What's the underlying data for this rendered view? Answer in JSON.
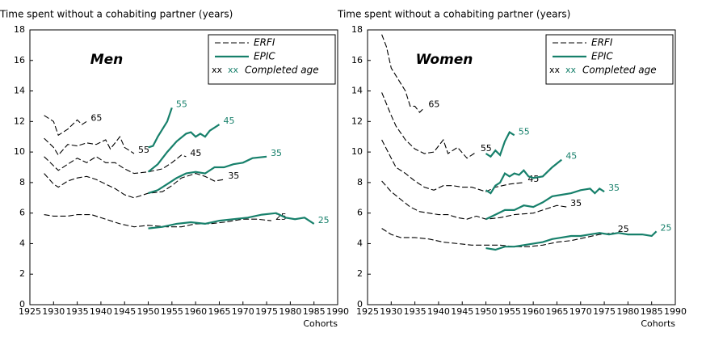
{
  "chart_data": [
    {
      "type": "line",
      "y_label": "Time spent without a cohabiting partner (years)",
      "x_label": "Cohorts",
      "panel": "Men",
      "xlim": [
        1925,
        1990
      ],
      "ylim": [
        0,
        18
      ],
      "xticks": [
        1925,
        1930,
        1935,
        1940,
        1945,
        1950,
        1955,
        1960,
        1965,
        1970,
        1975,
        1980,
        1985,
        1990
      ],
      "yticks": [
        0,
        2,
        4,
        6,
        8,
        10,
        12,
        14,
        16,
        18
      ],
      "legend": [
        {
          "label": "ERFI",
          "color": "#000000",
          "dashed": true
        },
        {
          "label": "EPIC",
          "color": "#17806b",
          "dashed": false
        }
      ],
      "age_note": {
        "markers": [
          "xx",
          "xx"
        ],
        "label": "Completed age"
      },
      "series": [
        {
          "name": "65",
          "color": "#000000",
          "dashed": true,
          "x": [
            1928,
            1930,
            1931,
            1933,
            1935,
            1936,
            1937
          ],
          "values": [
            12.4,
            12.0,
            11.1,
            11.5,
            12.1,
            11.8,
            12.0
          ]
        },
        {
          "name": "55",
          "color": "#000000",
          "dashed": true,
          "x": [
            1928,
            1930,
            1931,
            1933,
            1935,
            1937,
            1939,
            1941,
            1942,
            1944,
            1945,
            1947
          ],
          "values": [
            10.9,
            10.3,
            9.8,
            10.5,
            10.4,
            10.6,
            10.5,
            10.8,
            10.2,
            11.0,
            10.3,
            9.9
          ]
        },
        {
          "name": "45",
          "color": "#000000",
          "dashed": true,
          "x": [
            1928,
            1930,
            1931,
            1933,
            1935,
            1937,
            1939,
            1941,
            1943,
            1945,
            1947,
            1950,
            1953,
            1955,
            1957,
            1958
          ],
          "values": [
            9.7,
            9.1,
            8.8,
            9.2,
            9.6,
            9.3,
            9.7,
            9.3,
            9.3,
            8.9,
            8.6,
            8.7,
            8.9,
            9.3,
            9.8,
            9.7
          ]
        },
        {
          "name": "35",
          "color": "#000000",
          "dashed": true,
          "x": [
            1928,
            1930,
            1931,
            1933,
            1935,
            1937,
            1939,
            1941,
            1943,
            1945,
            1947,
            1950,
            1953,
            1955,
            1957,
            1960,
            1962,
            1964,
            1966
          ],
          "values": [
            8.6,
            7.9,
            7.7,
            8.1,
            8.3,
            8.4,
            8.2,
            7.9,
            7.6,
            7.2,
            7.0,
            7.3,
            7.4,
            7.8,
            8.3,
            8.6,
            8.4,
            8.1,
            8.2
          ]
        },
        {
          "name": "25",
          "color": "#000000",
          "dashed": true,
          "x": [
            1928,
            1930,
            1933,
            1935,
            1938,
            1941,
            1944,
            1947,
            1950,
            1954,
            1957,
            1960,
            1963,
            1966,
            1970,
            1973,
            1976
          ],
          "values": [
            5.9,
            5.8,
            5.8,
            5.9,
            5.9,
            5.6,
            5.3,
            5.1,
            5.2,
            5.1,
            5.1,
            5.3,
            5.3,
            5.4,
            5.6,
            5.6,
            5.5
          ]
        },
        {
          "name": "55",
          "color": "#17806b",
          "dashed": false,
          "x": [
            1950,
            1951,
            1952,
            1954,
            1955
          ],
          "values": [
            10.3,
            10.4,
            11.0,
            12.0,
            12.9
          ]
        },
        {
          "name": "45",
          "color": "#17806b",
          "dashed": false,
          "x": [
            1950,
            1952,
            1954,
            1956,
            1958,
            1959,
            1960,
            1961,
            1962,
            1963,
            1965
          ],
          "values": [
            8.7,
            9.2,
            10.0,
            10.7,
            11.2,
            11.3,
            11.0,
            11.2,
            11.0,
            11.4,
            11.8
          ]
        },
        {
          "name": "35",
          "color": "#17806b",
          "dashed": false,
          "x": [
            1950,
            1952,
            1954,
            1956,
            1958,
            1960,
            1962,
            1964,
            1966,
            1968,
            1970,
            1972,
            1975
          ],
          "values": [
            7.3,
            7.5,
            7.9,
            8.3,
            8.6,
            8.7,
            8.6,
            9.0,
            9.0,
            9.2,
            9.3,
            9.6,
            9.7
          ]
        },
        {
          "name": "25",
          "color": "#17806b",
          "dashed": false,
          "x": [
            1950,
            1953,
            1956,
            1959,
            1962,
            1965,
            1968,
            1971,
            1974,
            1977,
            1979,
            1981,
            1983,
            1985
          ],
          "values": [
            5.0,
            5.1,
            5.3,
            5.4,
            5.3,
            5.5,
            5.6,
            5.7,
            5.9,
            6.0,
            5.7,
            5.6,
            5.7,
            5.3
          ]
        }
      ]
    },
    {
      "type": "line",
      "y_label": "Time spent without a cohabiting partner (years)",
      "x_label": "Cohorts",
      "panel": "Women",
      "xlim": [
        1925,
        1990
      ],
      "ylim": [
        0,
        18
      ],
      "xticks": [
        1925,
        1930,
        1935,
        1940,
        1945,
        1950,
        1955,
        1960,
        1965,
        1970,
        1975,
        1980,
        1985,
        1990
      ],
      "yticks": [
        0,
        2,
        4,
        6,
        8,
        10,
        12,
        14,
        16,
        18
      ],
      "legend": [
        {
          "label": "ERFI",
          "color": "#000000",
          "dashed": true
        },
        {
          "label": "EPIC",
          "color": "#17806b",
          "dashed": false
        }
      ],
      "age_note": {
        "markers": [
          "xx",
          "xx"
        ],
        "label": "Completed age"
      },
      "series": [
        {
          "name": "65",
          "color": "#000000",
          "dashed": true,
          "x": [
            1928,
            1929,
            1930,
            1931,
            1933,
            1934,
            1935,
            1936,
            1937
          ],
          "values": [
            17.7,
            16.9,
            15.5,
            15.0,
            14.0,
            13.0,
            13.0,
            12.6,
            12.9
          ]
        },
        {
          "name": "55",
          "color": "#000000",
          "dashed": true,
          "x": [
            1928,
            1930,
            1931,
            1933,
            1935,
            1937,
            1939,
            1941,
            1942,
            1944,
            1946,
            1948
          ],
          "values": [
            13.9,
            12.4,
            11.7,
            10.8,
            10.2,
            9.9,
            10.0,
            10.8,
            9.9,
            10.3,
            9.6,
            10.0
          ]
        },
        {
          "name": "45",
          "color": "#000000",
          "dashed": true,
          "x": [
            1928,
            1930,
            1931,
            1933,
            1935,
            1937,
            1939,
            1941,
            1943,
            1945,
            1947,
            1950,
            1952,
            1955,
            1958
          ],
          "values": [
            10.8,
            9.6,
            9.0,
            8.6,
            8.1,
            7.7,
            7.5,
            7.8,
            7.8,
            7.7,
            7.7,
            7.4,
            7.7,
            7.9,
            8.0
          ]
        },
        {
          "name": "35",
          "color": "#000000",
          "dashed": true,
          "x": [
            1928,
            1930,
            1932,
            1934,
            1936,
            1938,
            1940,
            1942,
            1944,
            1946,
            1948,
            1950,
            1953,
            1956,
            1960,
            1963,
            1965,
            1967
          ],
          "values": [
            8.1,
            7.4,
            6.9,
            6.4,
            6.1,
            6.0,
            5.9,
            5.9,
            5.7,
            5.6,
            5.8,
            5.6,
            5.7,
            5.9,
            6.0,
            6.3,
            6.5,
            6.4
          ]
        },
        {
          "name": "25",
          "color": "#000000",
          "dashed": true,
          "x": [
            1928,
            1930,
            1932,
            1935,
            1938,
            1941,
            1944,
            1947,
            1950,
            1953,
            1956,
            1959,
            1962,
            1965,
            1968,
            1971,
            1974,
            1977
          ],
          "values": [
            5.0,
            4.6,
            4.4,
            4.4,
            4.3,
            4.1,
            4.0,
            3.9,
            3.9,
            3.9,
            3.8,
            3.8,
            3.9,
            4.1,
            4.2,
            4.4,
            4.6,
            4.7
          ]
        },
        {
          "name": "55",
          "color": "#17806b",
          "dashed": false,
          "x": [
            1950,
            1951,
            1952,
            1953,
            1954,
            1955,
            1956
          ],
          "values": [
            9.9,
            9.7,
            10.1,
            9.8,
            10.7,
            11.3,
            11.1
          ]
        },
        {
          "name": "45",
          "color": "#17806b",
          "dashed": false,
          "x": [
            1950,
            1951,
            1952,
            1953,
            1954,
            1955,
            1956,
            1957,
            1958,
            1959,
            1960,
            1962,
            1964,
            1966
          ],
          "values": [
            7.5,
            7.3,
            7.8,
            8.0,
            8.6,
            8.4,
            8.6,
            8.5,
            8.8,
            8.4,
            8.3,
            8.4,
            9.0,
            9.5
          ]
        },
        {
          "name": "35",
          "color": "#17806b",
          "dashed": false,
          "x": [
            1950,
            1952,
            1954,
            1956,
            1958,
            1960,
            1962,
            1964,
            1966,
            1968,
            1970,
            1972,
            1973,
            1974,
            1975
          ],
          "values": [
            5.6,
            5.9,
            6.2,
            6.2,
            6.5,
            6.4,
            6.7,
            7.1,
            7.2,
            7.3,
            7.5,
            7.6,
            7.3,
            7.6,
            7.4
          ]
        },
        {
          "name": "25",
          "color": "#17806b",
          "dashed": false,
          "x": [
            1950,
            1952,
            1954,
            1956,
            1958,
            1960,
            1962,
            1964,
            1966,
            1968,
            1970,
            1972,
            1974,
            1976,
            1978,
            1980,
            1983,
            1985,
            1986
          ],
          "values": [
            3.7,
            3.6,
            3.8,
            3.8,
            3.9,
            4.0,
            4.1,
            4.3,
            4.4,
            4.5,
            4.5,
            4.6,
            4.7,
            4.6,
            4.7,
            4.6,
            4.6,
            4.5,
            4.8
          ]
        }
      ]
    }
  ]
}
